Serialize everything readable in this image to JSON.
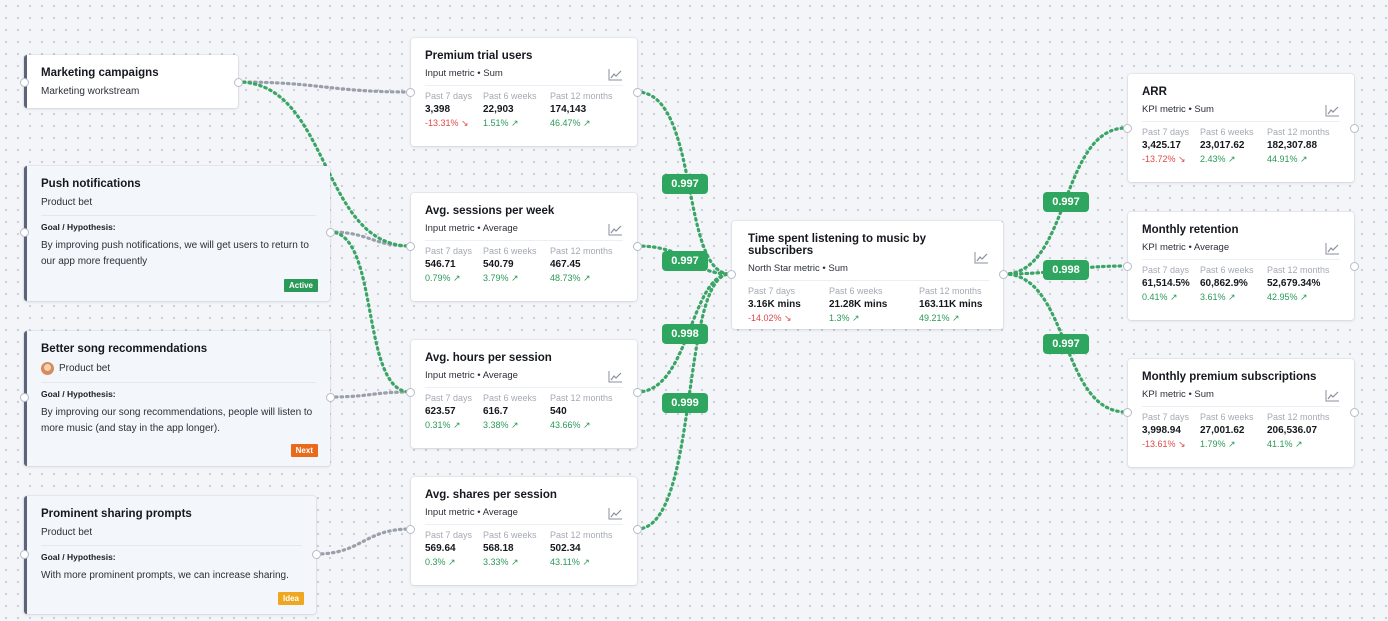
{
  "colors": {
    "canvas_bg": "#f4f5f9",
    "positive": "#2a9a58",
    "negative": "#e04848",
    "correlation_badge": "#2fa65f",
    "connector_active": "#3aa564",
    "connector_inactive": "#9aa0aa",
    "status_active": "#2a9a58",
    "status_next": "#e86a1a",
    "status_idea": "#efa620"
  },
  "icons": {
    "trend": "trend-line-icon",
    "avatar": "user-avatar-icon",
    "connector": "connection-handle-icon"
  },
  "bets": [
    {
      "title": "Marketing campaigns",
      "subtitle": "Marketing workstream"
    },
    {
      "title": "Push notifications",
      "subtitle": "Product bet",
      "hypothesis_label": "Goal / Hypothesis:",
      "hypothesis": "By improving push notifications, we will get users to return to our app more frequently",
      "status": "Active"
    },
    {
      "title": "Better song recommendations",
      "subtitle": "Product bet",
      "hypothesis_label": "Goal / Hypothesis:",
      "hypothesis": "By improving our song recommendations, people will listen to more music (and stay in the app longer).",
      "status": "Next"
    },
    {
      "title": "Prominent sharing prompts",
      "subtitle": "Product bet",
      "hypothesis_label": "Goal / Hypothesis:",
      "hypothesis": "With more prominent prompts, we can increase sharing.",
      "status": "Idea"
    }
  ],
  "input_metrics": [
    {
      "title": "Premium trial users",
      "type": "Input metric",
      "agg": "Sum",
      "periods": [
        {
          "label": "Past 7 days",
          "value": "3,398",
          "change": "-13.31%",
          "dir": "down",
          "arrow": "↘"
        },
        {
          "label": "Past 6 weeks",
          "value": "22,903",
          "change": "1.51%",
          "dir": "up",
          "arrow": "↗"
        },
        {
          "label": "Past 12 months",
          "value": "174,143",
          "change": "46.47%",
          "dir": "up",
          "arrow": "↗"
        }
      ]
    },
    {
      "title": "Avg. sessions per week",
      "type": "Input metric",
      "agg": "Average",
      "periods": [
        {
          "label": "Past 7 days",
          "value": "546.71",
          "change": "0.79%",
          "dir": "up",
          "arrow": "↗"
        },
        {
          "label": "Past 6 weeks",
          "value": "540.79",
          "change": "3.79%",
          "dir": "up",
          "arrow": "↗"
        },
        {
          "label": "Past 12 months",
          "value": "467.45",
          "change": "48.73%",
          "dir": "up",
          "arrow": "↗"
        }
      ]
    },
    {
      "title": "Avg. hours per session",
      "type": "Input metric",
      "agg": "Average",
      "periods": [
        {
          "label": "Past 7 days",
          "value": "623.57",
          "change": "0.31%",
          "dir": "up",
          "arrow": "↗"
        },
        {
          "label": "Past 6 weeks",
          "value": "616.7",
          "change": "3.38%",
          "dir": "up",
          "arrow": "↗"
        },
        {
          "label": "Past 12 months",
          "value": "540",
          "change": "43.66%",
          "dir": "up",
          "arrow": "↗"
        }
      ]
    },
    {
      "title": "Avg. shares per session",
      "type": "Input metric",
      "agg": "Average",
      "periods": [
        {
          "label": "Past 7 days",
          "value": "569.64",
          "change": "0.3%",
          "dir": "up",
          "arrow": "↗"
        },
        {
          "label": "Past 6 weeks",
          "value": "568.18",
          "change": "3.33%",
          "dir": "up",
          "arrow": "↗"
        },
        {
          "label": "Past 12 months",
          "value": "502.34",
          "change": "43.11%",
          "dir": "up",
          "arrow": "↗"
        }
      ]
    }
  ],
  "north_star": {
    "title": "Time spent listening to music by subscribers",
    "type": "North Star metric",
    "agg": "Sum",
    "periods": [
      {
        "label": "Past 7 days",
        "value": "3.16K mins",
        "change": "-14.02%",
        "dir": "down",
        "arrow": "↘"
      },
      {
        "label": "Past 6 weeks",
        "value": "21.28K mins",
        "change": "1.3%",
        "dir": "up",
        "arrow": "↗"
      },
      {
        "label": "Past 12 months",
        "value": "163.11K mins",
        "change": "49.21%",
        "dir": "up",
        "arrow": "↗"
      }
    ]
  },
  "kpis": [
    {
      "title": "ARR",
      "type": "KPI metric",
      "agg": "Sum",
      "periods": [
        {
          "label": "Past 7 days",
          "value": "3,425.17",
          "change": "-13.72%",
          "dir": "down",
          "arrow": "↘"
        },
        {
          "label": "Past 6 weeks",
          "value": "23,017.62",
          "change": "2.43%",
          "dir": "up",
          "arrow": "↗"
        },
        {
          "label": "Past 12 months",
          "value": "182,307.88",
          "change": "44.91%",
          "dir": "up",
          "arrow": "↗"
        }
      ]
    },
    {
      "title": "Monthly retention",
      "type": "KPI metric",
      "agg": "Average",
      "periods": [
        {
          "label": "Past 7 days",
          "value": "61,514.5%",
          "change": "0.41%",
          "dir": "up",
          "arrow": "↗"
        },
        {
          "label": "Past 6 weeks",
          "value": "60,862.9%",
          "change": "3.61%",
          "dir": "up",
          "arrow": "↗"
        },
        {
          "label": "Past 12 months",
          "value": "52,679.34%",
          "change": "42.95%",
          "dir": "up",
          "arrow": "↗"
        }
      ]
    },
    {
      "title": "Monthly premium subscriptions",
      "type": "KPI metric",
      "agg": "Sum",
      "periods": [
        {
          "label": "Past 7 days",
          "value": "3,998.94",
          "change": "-13.61%",
          "dir": "down",
          "arrow": "↘"
        },
        {
          "label": "Past 6 weeks",
          "value": "27,001.62",
          "change": "1.79%",
          "dir": "up",
          "arrow": "↗"
        },
        {
          "label": "Past 12 months",
          "value": "206,536.07",
          "change": "41.1%",
          "dir": "up",
          "arrow": "↗"
        }
      ]
    }
  ],
  "input_correlations": [
    "0.997",
    "0.997",
    "0.998",
    "0.999"
  ],
  "kpi_correlations": [
    "0.997",
    "0.998",
    "0.997"
  ]
}
